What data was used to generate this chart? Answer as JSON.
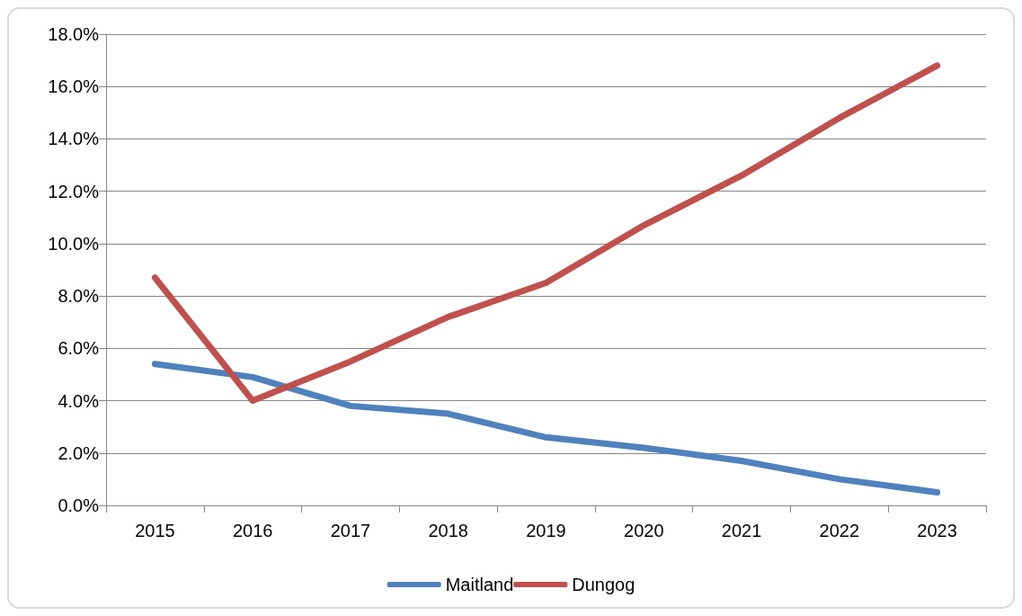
{
  "chart_data": {
    "type": "line",
    "categories": [
      "2015",
      "2016",
      "2017",
      "2018",
      "2019",
      "2020",
      "2021",
      "2022",
      "2023"
    ],
    "series": [
      {
        "name": "Maitland",
        "color": "#4f81bd",
        "values": [
          5.4,
          4.9,
          3.8,
          3.5,
          2.6,
          2.2,
          1.7,
          1.0,
          0.5
        ]
      },
      {
        "name": "Dungog",
        "color": "#c0504d",
        "values": [
          8.7,
          4.0,
          5.5,
          7.2,
          8.5,
          10.7,
          12.6,
          14.8,
          16.8
        ]
      }
    ],
    "ylim": [
      0,
      18
    ],
    "yticks": [
      {
        "value": 0,
        "label": "0.0%"
      },
      {
        "value": 2,
        "label": "2.0%"
      },
      {
        "value": 4,
        "label": "4.0%"
      },
      {
        "value": 6,
        "label": "6.0%"
      },
      {
        "value": 8,
        "label": "8.0%"
      },
      {
        "value": 10,
        "label": "10.0%"
      },
      {
        "value": 12,
        "label": "12.0%"
      },
      {
        "value": 14,
        "label": "14.0%"
      },
      {
        "value": 16,
        "label": "16.0%"
      },
      {
        "value": 18,
        "label": "18.0%"
      }
    ],
    "grid": "y",
    "legend": "bottom",
    "marker": "none",
    "line_style": "solid"
  }
}
